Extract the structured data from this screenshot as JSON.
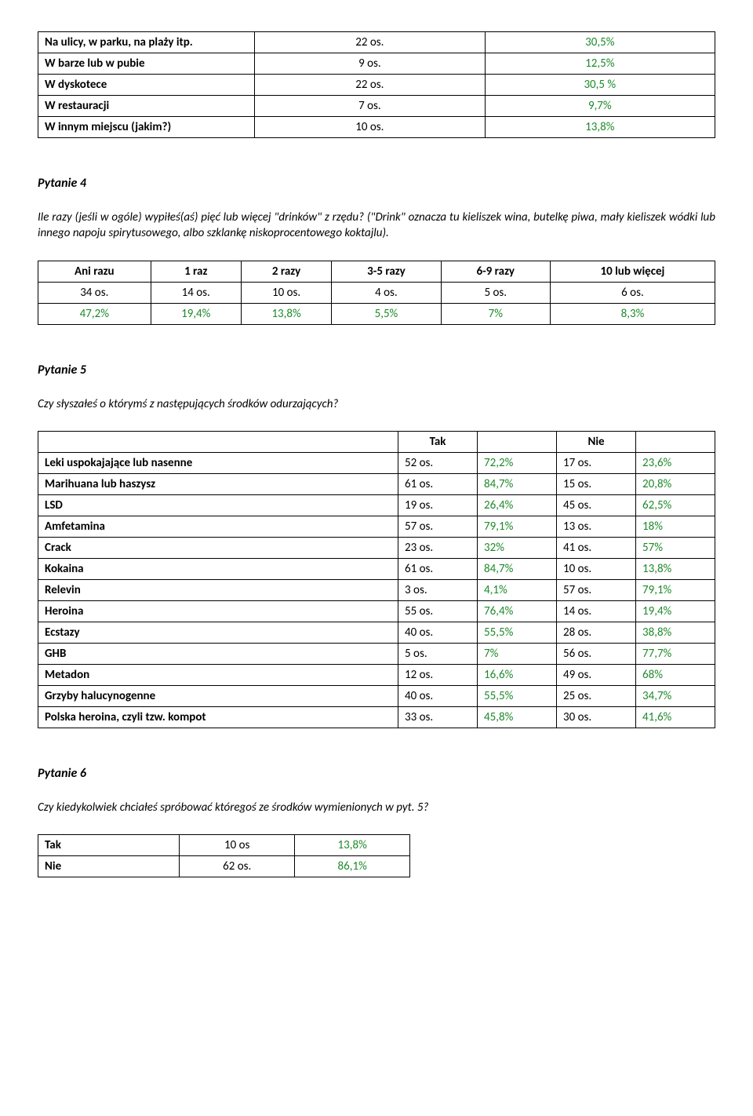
{
  "colors": {
    "percent": "#1e8a2a",
    "text": "#000000",
    "border": "#000000"
  },
  "table1": {
    "rows": [
      {
        "label": "Na ulicy, w parku, na plaży itp.",
        "count": "22 os.",
        "pct": "30,5%"
      },
      {
        "label": "W barze lub w pubie",
        "count": "9 os.",
        "pct": "12,5%"
      },
      {
        "label": "W dyskotece",
        "count": "22 os.",
        "pct": "30,5 %"
      },
      {
        "label": "W restauracji",
        "count": "7 os.",
        "pct": "9,7%"
      },
      {
        "label": "W innym miejscu (jakim?)",
        "count": "10 os.",
        "pct": "13,8%"
      }
    ]
  },
  "q4": {
    "title": "Pytanie 4",
    "text": "Ile razy (jeśli w ogóle) wypiłeś(aś) pięć lub więcej \"drinków\" z rzędu? (\"Drink\" oznacza tu kieliszek wina, butelkę piwa, mały kieliszek wódki lub innego napoju spirytusowego, albo szklankę niskoprocentowego koktajlu).",
    "headers": [
      "Ani razu",
      "1 raz",
      "2 razy",
      "3-5 razy",
      "6-9 razy",
      "10 lub więcej"
    ],
    "counts": [
      "34 os.",
      "14 os.",
      "10 os.",
      "4 os.",
      "5 os.",
      "6 os."
    ],
    "pcts": [
      "47,2%",
      "19,4%",
      "13,8%",
      "5,5%",
      "7%",
      "8,3%"
    ]
  },
  "q5": {
    "title": "Pytanie 5",
    "text": "Czy słyszałeś o którymś z następujących środków odurzających?",
    "col_tak": "Tak",
    "col_nie": "Nie",
    "rows": [
      {
        "label": "Leki uspokajające lub nasenne",
        "tak_c": "52 os.",
        "tak_p": "72,2%",
        "nie_c": "17 os.",
        "nie_p": "23,6%"
      },
      {
        "label": "Marihuana lub haszysz",
        "tak_c": "61 os.",
        "tak_p": "84,7%",
        "nie_c": "15 os.",
        "nie_p": "20,8%"
      },
      {
        "label": "LSD",
        "tak_c": "19 os.",
        "tak_p": "26,4%",
        "nie_c": "45 os.",
        "nie_p": "62,5%"
      },
      {
        "label": "Amfetamina",
        "tak_c": "57 os.",
        "tak_p": "79,1%",
        "nie_c": "13 os.",
        "nie_p": "18%"
      },
      {
        "label": "Crack",
        "tak_c": "23 os.",
        "tak_p": "32%",
        "nie_c": "41 os.",
        "nie_p": "57%"
      },
      {
        "label": "Kokaina",
        "tak_c": "61 os.",
        "tak_p": "84,7%",
        "nie_c": "10 os.",
        "nie_p": "13,8%"
      },
      {
        "label": "Relevin",
        "tak_c": "3 os.",
        "tak_p": "4,1%",
        "nie_c": "57 os.",
        "nie_p": "79,1%"
      },
      {
        "label": "Heroina",
        "tak_c": "55 os.",
        "tak_p": "76,4%",
        "nie_c": "14 os.",
        "nie_p": "19,4%"
      },
      {
        "label": "Ecstazy",
        "tak_c": "40 os.",
        "tak_p": "55,5%",
        "nie_c": "28 os.",
        "nie_p": "38,8%"
      },
      {
        "label": "GHB",
        "tak_c": "5 os.",
        "tak_p": "7%",
        "nie_c": "56 os.",
        "nie_p": "77,7%"
      },
      {
        "label": "Metadon",
        "tak_c": "12 os.",
        "tak_p": "16,6%",
        "nie_c": "49 os.",
        "nie_p": "68%"
      },
      {
        "label": "Grzyby halucynogenne",
        "tak_c": "40 os.",
        "tak_p": "55,5%",
        "nie_c": "25 os.",
        "nie_p": "34,7%"
      },
      {
        "label": "Polska heroina, czyli tzw. kompot",
        "tak_c": "33 os.",
        "tak_p": "45,8%",
        "nie_c": "30 os.",
        "nie_p": "41,6%"
      }
    ]
  },
  "q6": {
    "title": "Pytanie 6",
    "text": "Czy kiedykolwiek chciałeś spróbować któregoś ze środków wymienionych w pyt. 5?",
    "rows": [
      {
        "label": "Tak",
        "count": "10 os",
        "pct": "13,8%"
      },
      {
        "label": "Nie",
        "count": "62 os.",
        "pct": "86,1%"
      }
    ]
  }
}
